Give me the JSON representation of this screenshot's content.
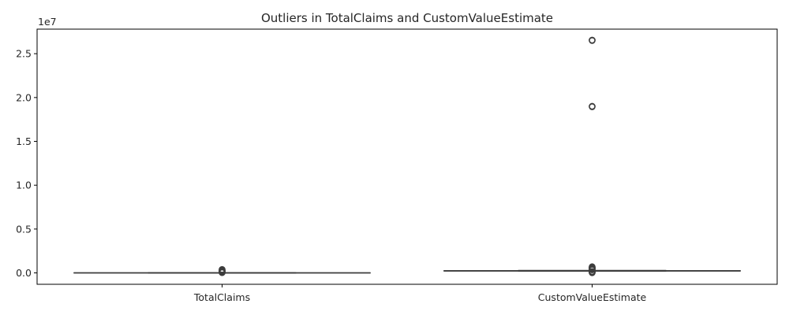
{
  "chart_data": {
    "type": "box",
    "title": "Outliers in TotalClaims and CustomValueEstimate",
    "y_offset_label": "1e7",
    "ylim": [
      -1300000,
      27800000
    ],
    "y_ticks": [
      0,
      5000000,
      10000000,
      15000000,
      20000000,
      25000000
    ],
    "y_tick_labels": [
      "0.0",
      "0.5",
      "1.0",
      "1.5",
      "2.0",
      "2.5"
    ],
    "categories": [
      "TotalClaims",
      "CustomValueEstimate"
    ],
    "boxes": [
      {
        "name": "TotalClaims",
        "whisker_low": 0,
        "q1": 0,
        "median": 0,
        "q3": 0,
        "whisker_high": 0,
        "outliers": [
          30000,
          60000,
          100000,
          150000,
          200000,
          250000,
          300000,
          350000,
          390000
        ]
      },
      {
        "name": "CustomValueEstimate",
        "whisker_low": 200000,
        "q1": 220000,
        "median": 230000,
        "q3": 250000,
        "whisker_high": 270000,
        "outliers": [
          20000,
          50000,
          80000,
          120000,
          160000,
          350000,
          400000,
          450000,
          500000,
          550000,
          600000,
          650000,
          700000,
          18950000,
          19000000,
          26500000,
          26550000
        ]
      }
    ],
    "colors": {
      "box_fill": "#ffffff",
      "line": "#3d3d3d",
      "axis": "#000000",
      "text": "#262626"
    }
  }
}
